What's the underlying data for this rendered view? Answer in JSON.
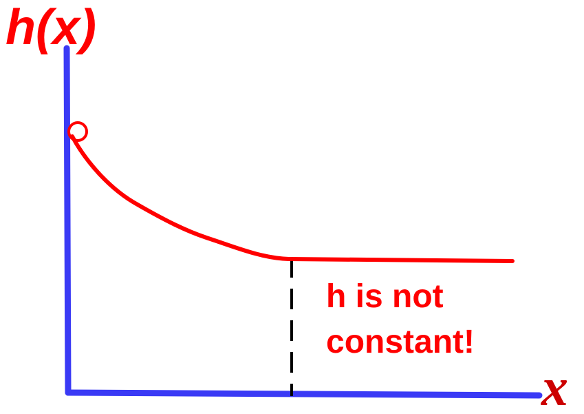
{
  "labels": {
    "y_axis": "h(x)",
    "x_axis": "x",
    "annotation_line1": "h is not",
    "annotation_line2": "constant!"
  },
  "colors": {
    "axes": "#3a3af5",
    "curve": "#ff0000",
    "text": "#ff0000",
    "x_label": "#cc0000",
    "marker_line": "#000000",
    "background": "#ffffff"
  }
}
